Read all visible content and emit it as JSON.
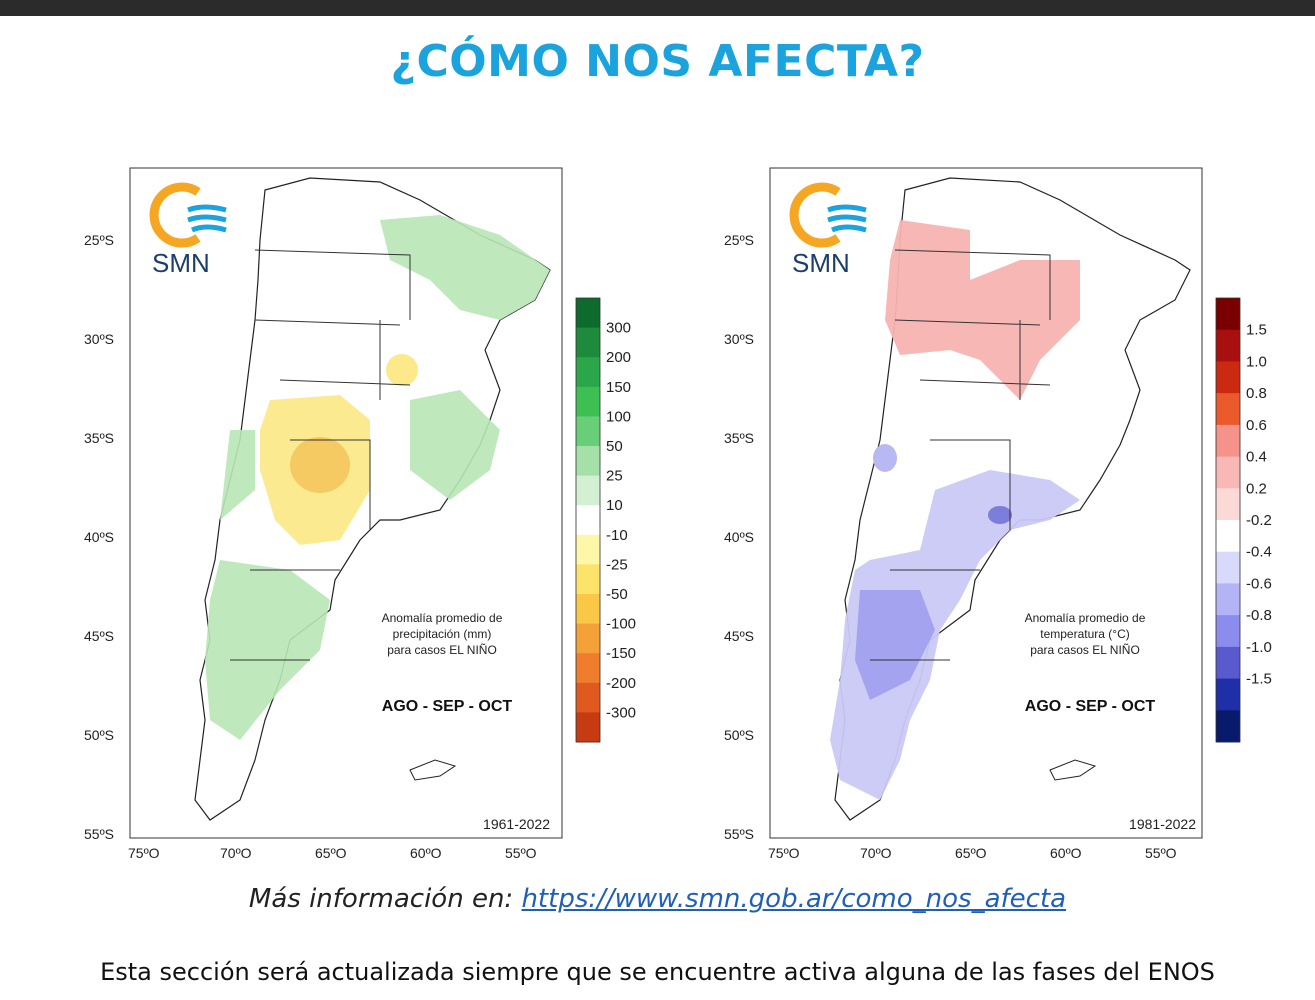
{
  "header": {
    "title": "¿CÓMO NOS AFECTA?"
  },
  "maps": [
    {
      "brand": "SMN",
      "lat_ticks": [
        "25ºS",
        "30ºS",
        "35ºS",
        "40ºS",
        "45ºS",
        "50ºS",
        "55ºS"
      ],
      "lon_ticks": [
        "75ºO",
        "70ºO",
        "65ºO",
        "60ºO",
        "55ºO"
      ],
      "legend_title": [
        "Anomalía promedio de",
        "precipitación (mm)",
        "para casos EL NIÑO"
      ],
      "season": "AGO - SEP - OCT",
      "period": "1961-2022",
      "colorbar": {
        "labels": [
          "300",
          "200",
          "150",
          "100",
          "50",
          "25",
          "10",
          "-10",
          "-25",
          "-50",
          "-100",
          "-150",
          "-200",
          "-300"
        ],
        "colors": [
          "#0d6b2e",
          "#1e8a3c",
          "#2ba64a",
          "#3dbf52",
          "#68cf78",
          "#a5e0a8",
          "#d4f0d2",
          "#ffffff",
          "#fff7a8",
          "#fde36a",
          "#f9c846",
          "#f4a13a",
          "#ef7d2d",
          "#e05a1f",
          "#c73b12"
        ]
      }
    },
    {
      "brand": "SMN",
      "lat_ticks": [
        "25ºS",
        "30ºS",
        "35ºS",
        "40ºS",
        "45ºS",
        "50ºS",
        "55ºS"
      ],
      "lon_ticks": [
        "75ºO",
        "70ºO",
        "65ºO",
        "60ºO",
        "55ºO"
      ],
      "legend_title": [
        "Anomalía promedio de",
        "temperatura (°C)",
        "para casos EL NIÑO"
      ],
      "season": "AGO - SEP - OCT",
      "period": "1981-2022",
      "colorbar": {
        "labels": [
          "1.5",
          "1.0",
          "0.8",
          "0.6",
          "0.4",
          "0.2",
          "-0.2",
          "-0.4",
          "-0.6",
          "-0.8",
          "-1.0",
          "-1.5"
        ],
        "colors": [
          "#7a0000",
          "#a81010",
          "#cc2a10",
          "#ea5a2a",
          "#f5928a",
          "#f8b9b6",
          "#fbd9d7",
          "#ffffff",
          "#d9d9fb",
          "#b3b3f5",
          "#8c8cee",
          "#5a5acf",
          "#1f2fa8",
          "#081a6b"
        ]
      }
    }
  ],
  "footer": {
    "prefix": "Más información en: ",
    "link": "https://www.smn.gob.ar/como_nos_afecta",
    "note": "Esta sección será actualizada siempre que se encuentre activa alguna de las fases del ENOS"
  }
}
